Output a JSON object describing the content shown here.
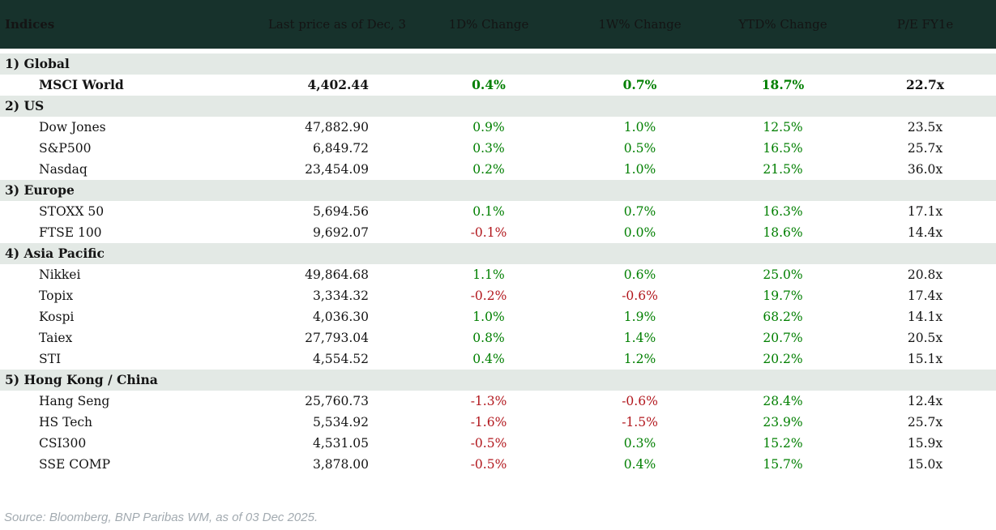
{
  "chart_data": {
    "type": "table",
    "title": "Indices",
    "columns": [
      "Last price as of Dec, 3",
      "1D% Change",
      "1W% Change",
      "YTD% Change",
      "P/E FY1e"
    ],
    "sections": [
      {
        "label": "1) Global",
        "rows": [
          {
            "name": "MSCI World",
            "price": "4,402.44",
            "d1": "0.4%",
            "w1": "0.7%",
            "ytd": "18.7%",
            "pe": "22.7x",
            "bold": true
          }
        ]
      },
      {
        "label": "2) US",
        "rows": [
          {
            "name": "Dow Jones",
            "price": "47,882.90",
            "d1": "0.9%",
            "w1": "1.0%",
            "ytd": "12.5%",
            "pe": "23.5x",
            "bold": false
          },
          {
            "name": "S&P500",
            "price": "6,849.72",
            "d1": "0.3%",
            "w1": "0.5%",
            "ytd": "16.5%",
            "pe": "25.7x",
            "bold": false
          },
          {
            "name": "Nasdaq",
            "price": "23,454.09",
            "d1": "0.2%",
            "w1": "1.0%",
            "ytd": "21.5%",
            "pe": "36.0x",
            "bold": false
          }
        ]
      },
      {
        "label": "3) Europe",
        "rows": [
          {
            "name": "STOXX 50",
            "price": "5,694.56",
            "d1": "0.1%",
            "w1": "0.7%",
            "ytd": "16.3%",
            "pe": "17.1x",
            "bold": false
          },
          {
            "name": "FTSE 100",
            "price": "9,692.07",
            "d1": "-0.1%",
            "w1": "0.0%",
            "ytd": "18.6%",
            "pe": "14.4x",
            "bold": false
          }
        ]
      },
      {
        "label": "4) Asia Pacific",
        "rows": [
          {
            "name": "Nikkei",
            "price": "49,864.68",
            "d1": "1.1%",
            "w1": "0.6%",
            "ytd": "25.0%",
            "pe": "20.8x",
            "bold": false
          },
          {
            "name": "Topix",
            "price": "3,334.32",
            "d1": "-0.2%",
            "w1": "-0.6%",
            "ytd": "19.7%",
            "pe": "17.4x",
            "bold": false
          },
          {
            "name": "Kospi",
            "price": "4,036.30",
            "d1": "1.0%",
            "w1": "1.9%",
            "ytd": "68.2%",
            "pe": "14.1x",
            "bold": false
          },
          {
            "name": "Taiex",
            "price": "27,793.04",
            "d1": "0.8%",
            "w1": "1.4%",
            "ytd": "20.7%",
            "pe": "20.5x",
            "bold": false
          },
          {
            "name": "STI",
            "price": "4,554.52",
            "d1": "0.4%",
            "w1": "1.2%",
            "ytd": "20.2%",
            "pe": "15.1x",
            "bold": false
          }
        ]
      },
      {
        "label": "5) Hong Kong / China",
        "rows": [
          {
            "name": "Hang Seng",
            "price": "25,760.73",
            "d1": "-1.3%",
            "w1": "-0.6%",
            "ytd": "28.4%",
            "pe": "12.4x",
            "bold": false
          },
          {
            "name": "HS Tech",
            "price": "5,534.92",
            "d1": "-1.6%",
            "w1": "-1.5%",
            "ytd": "23.9%",
            "pe": "25.7x",
            "bold": false
          },
          {
            "name": "CSI300",
            "price": "4,531.05",
            "d1": "-0.5%",
            "w1": "0.3%",
            "ytd": "15.2%",
            "pe": "15.9x",
            "bold": false
          },
          {
            "name": "SSE COMP",
            "price": "3,878.00",
            "d1": "-0.5%",
            "w1": "0.4%",
            "ytd": "15.7%",
            "pe": "15.0x",
            "bold": false
          }
        ]
      }
    ]
  },
  "footer": {
    "source": "Source: Bloomberg, BNP Paribas WM, as of 03 Dec 2025."
  },
  "colors": {
    "header_bg": "#17322C",
    "header_text": "#FFFFFF",
    "band_bg": "#E3E9E5",
    "positive": "#007F00",
    "negative": "#B2181E",
    "text": "#141414",
    "footer_text": "#A2AAB0"
  }
}
